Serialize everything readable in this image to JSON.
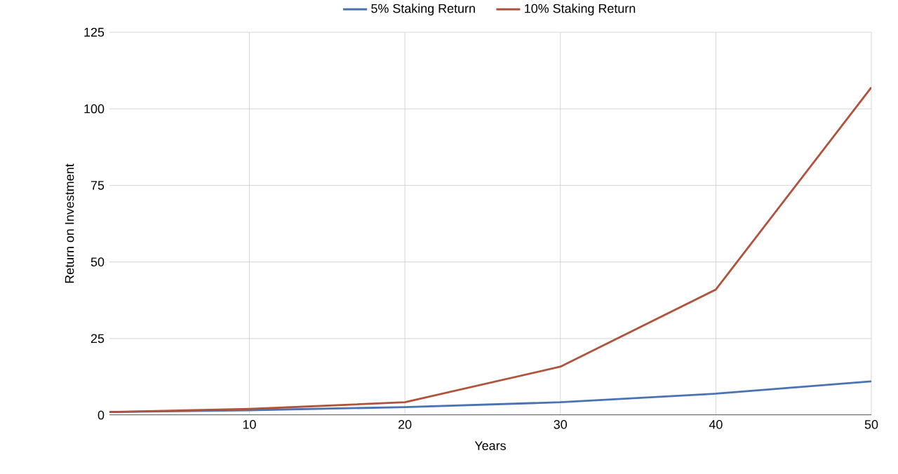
{
  "chart_data": {
    "type": "line",
    "xlabel": "Years",
    "ylabel": "Return on Investment",
    "xlim": [
      1,
      50
    ],
    "xticks": [
      10,
      20,
      30,
      40,
      50
    ],
    "ylim": [
      0,
      125
    ],
    "yticks": [
      0,
      25,
      50,
      75,
      100,
      125
    ],
    "grid": true,
    "legend": "top",
    "marker": "none",
    "line_style": "solid",
    "series": [
      {
        "name": "5% Staking Return",
        "color": "#4a73b3",
        "x": [
          1,
          10,
          20,
          30,
          40,
          50
        ],
        "values": [
          1,
          1.6,
          2.6,
          4.2,
          7,
          11
        ]
      },
      {
        "name": "10% Staking Return",
        "color": "#b0533c",
        "x": [
          1,
          10,
          20,
          30,
          40,
          50
        ],
        "values": [
          1,
          2,
          4.2,
          15.8,
          41,
          107
        ]
      }
    ]
  }
}
